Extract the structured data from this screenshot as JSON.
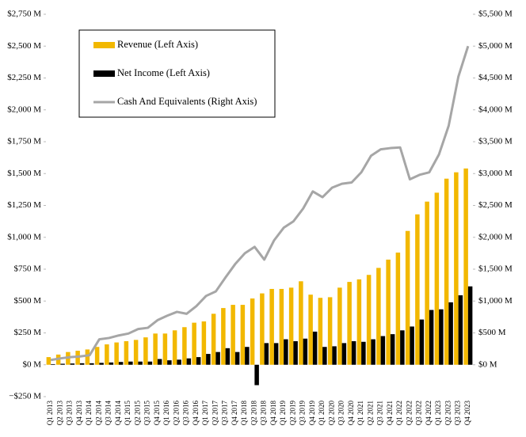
{
  "chart_data": {
    "type": "bar-line",
    "categories": [
      "Q1 2013",
      "Q2 2013",
      "Q3 2013",
      "Q4 2013",
      "Q1 2014",
      "Q2 2014",
      "Q3 2014",
      "Q4 2014",
      "Q1 2015",
      "Q2 2015",
      "Q3 2015",
      "Q4 2015",
      "Q1 2016",
      "Q2 2016",
      "Q3 2016",
      "Q4 2016",
      "Q1 2017",
      "Q2 2017",
      "Q3 2017",
      "Q4 2017",
      "Q1 2018",
      "Q2 2018",
      "Q3 2018",
      "Q4 2018",
      "Q1 2019",
      "Q2 2019",
      "Q3 2019",
      "Q4 2019",
      "Q1 2020",
      "Q2 2020",
      "Q3 2020",
      "Q4 2020",
      "Q1 2021",
      "Q2 2021",
      "Q3 2021",
      "Q4 2021",
      "Q1 2022",
      "Q2 2022",
      "Q3 2022",
      "Q4 2022",
      "Q1 2023",
      "Q2 2023",
      "Q3 2023",
      "Q4 2023"
    ],
    "series": [
      {
        "name": "Revenue (Left Axis)",
        "color": "#f2b800",
        "kind": "bar",
        "values": [
          60,
          80,
          100,
          110,
          120,
          140,
          160,
          175,
          185,
          195,
          215,
          245,
          245,
          270,
          295,
          330,
          340,
          400,
          445,
          470,
          470,
          520,
          560,
          595,
          595,
          605,
          655,
          550,
          525,
          530,
          605,
          650,
          670,
          705,
          760,
          825,
          880,
          1050,
          1180,
          1280,
          1350,
          1460,
          1510,
          1540
        ]
      },
      {
        "name": "Net Income (Left Axis)",
        "color": "#000000",
        "kind": "bar",
        "values": [
          5,
          8,
          10,
          12,
          12,
          15,
          18,
          22,
          25,
          25,
          25,
          45,
          35,
          40,
          50,
          60,
          85,
          100,
          130,
          100,
          140,
          -160,
          170,
          170,
          200,
          185,
          205,
          260,
          140,
          145,
          170,
          185,
          180,
          200,
          225,
          240,
          270,
          300,
          355,
          430,
          435,
          490,
          545,
          615
        ]
      },
      {
        "name": "Cash And Equivalents (Right Axis)",
        "color": "#a6a6a6",
        "kind": "line",
        "axis": "y2",
        "values": [
          75,
          100,
          120,
          130,
          150,
          400,
          420,
          460,
          490,
          560,
          580,
          700,
          770,
          830,
          800,
          920,
          1080,
          1150,
          1370,
          1580,
          1750,
          1850,
          1650,
          1950,
          2150,
          2250,
          2450,
          2720,
          2630,
          2780,
          2840,
          2860,
          3020,
          3280,
          3380,
          3400,
          3410,
          2910,
          2980,
          3020,
          3300,
          3750,
          4520,
          5000
        ]
      }
    ],
    "ylim": [
      -250,
      2750
    ],
    "yticks": [
      {
        "value": -250,
        "label": "−$250 M"
      },
      {
        "value": 0,
        "label": "$0 M"
      },
      {
        "value": 250,
        "label": "$250 M"
      },
      {
        "value": 500,
        "label": "$500 M"
      },
      {
        "value": 750,
        "label": "$750 M"
      },
      {
        "value": 1000,
        "label": "$1,000 M"
      },
      {
        "value": 1250,
        "label": "$1,250 M"
      },
      {
        "value": 1500,
        "label": "$1,500 M"
      },
      {
        "value": 1750,
        "label": "$1,750 M"
      },
      {
        "value": 2000,
        "label": "$2,000 M"
      },
      {
        "value": 2250,
        "label": "$2,250 M"
      },
      {
        "value": 2500,
        "label": "$2,500 M"
      },
      {
        "value": 2750,
        "label": "$2,750 M"
      }
    ],
    "y2lim": [
      -500,
      5500
    ],
    "y2ticks": [
      {
        "value": 0,
        "label": "$0 M"
      },
      {
        "value": 500,
        "label": "$500 M"
      },
      {
        "value": 1000,
        "label": "$1,000 M"
      },
      {
        "value": 1500,
        "label": "$1,500 M"
      },
      {
        "value": 2000,
        "label": "$2,000 M"
      },
      {
        "value": 2500,
        "label": "$2,500 M"
      },
      {
        "value": 3000,
        "label": "$3,000 M"
      },
      {
        "value": 3500,
        "label": "$3,500 M"
      },
      {
        "value": 4000,
        "label": "$4,000 M"
      },
      {
        "value": 4500,
        "label": "$4,500 M"
      },
      {
        "value": 5000,
        "label": "$5,000 M"
      },
      {
        "value": 5500,
        "label": "$5,500 M"
      }
    ],
    "grid": false,
    "legend": "upper left"
  }
}
